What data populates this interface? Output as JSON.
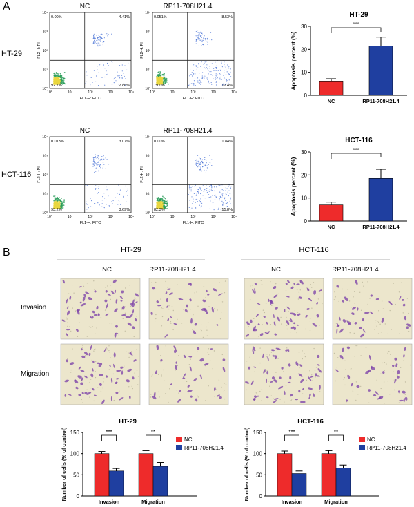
{
  "panel_a": {
    "label": "A",
    "col_nc": "NC",
    "col_rp": "RP11-708H21.4",
    "rows": [
      "HT-29",
      "HCT-116"
    ],
    "flow": {
      "xlabel": "FL1-H: FITC",
      "ylabel": "FL2-H: PI",
      "x_ticks": [
        "10⁰",
        "10¹",
        "10²",
        "10³",
        "10⁴"
      ],
      "y_ticks": [
        "10⁰",
        "10¹",
        "10²",
        "10³",
        "10⁴"
      ],
      "plots": [
        {
          "row": "HT-29",
          "group": "NC",
          "ul": "0.00%",
          "ur": "4.41%",
          "ll": "92.7%",
          "lr": "2.86%"
        },
        {
          "row": "HT-29",
          "group": "RP11-708H21.4",
          "ul": "0.051%",
          "ur": "8.53%",
          "ll": "79.0%",
          "lr": "12.4%"
        },
        {
          "row": "HCT-116",
          "group": "NC",
          "ul": "0.013%",
          "ur": "3.07%",
          "ll": "93.2%",
          "lr": "3.69%"
        },
        {
          "row": "HCT-116",
          "group": "RP11-708H21.4",
          "ul": "0.00%",
          "ur": "1.84%",
          "ll": "82.3%",
          "lr": "15.8%"
        }
      ]
    }
  },
  "panel_b": {
    "label": "B",
    "cell_lines": [
      "HT-29",
      "HCT-116"
    ],
    "groups": [
      "NC",
      "RP11-708H21.4",
      "NC",
      "RP11-708H21.4"
    ],
    "row_labels": [
      "Invasion",
      "Migration"
    ]
  },
  "colors": {
    "nc": "#ee2b2b",
    "rp": "#1f3fa0",
    "stain": "#7a3ea8",
    "bg_field": "#ece6cc",
    "flow_dense": "#2a9d5a"
  },
  "chart_data": [
    {
      "type": "bar",
      "title": "HT-29",
      "categories": [
        "NC",
        "RP11-708H21.4"
      ],
      "values": [
        6.2,
        21.5
      ],
      "errors": [
        1.0,
        3.8
      ],
      "ylabel": "Apoptosis percent (%)",
      "ylim": [
        0,
        30
      ],
      "y_ticks": [
        0,
        10,
        20,
        30
      ],
      "significance": "***"
    },
    {
      "type": "bar",
      "title": "HCT-116",
      "categories": [
        "NC",
        "RP11-708H21.4"
      ],
      "values": [
        7.0,
        18.5
      ],
      "errors": [
        1.2,
        4.0
      ],
      "ylabel": "Apoptosis percent (%)",
      "ylim": [
        0,
        30
      ],
      "y_ticks": [
        0,
        10,
        20,
        30
      ],
      "significance": "***"
    },
    {
      "type": "bar",
      "title": "HT-29",
      "categories": [
        "Invasion",
        "Migration"
      ],
      "series": [
        {
          "name": "NC",
          "values": [
            100,
            100
          ],
          "errors": [
            5,
            7
          ]
        },
        {
          "name": "RP11-708H21.4",
          "values": [
            59,
            70
          ],
          "errors": [
            6,
            9
          ]
        }
      ],
      "ylabel": "Number of cells (% of control)",
      "ylim": [
        0,
        150
      ],
      "y_ticks": [
        0,
        50,
        100,
        150
      ],
      "significance": [
        "***",
        "**"
      ],
      "legend": "top-right"
    },
    {
      "type": "bar",
      "title": "HCT-116",
      "categories": [
        "Invasion",
        "Migration"
      ],
      "series": [
        {
          "name": "NC",
          "values": [
            100,
            100
          ],
          "errors": [
            6,
            7
          ]
        },
        {
          "name": "RP11-708H21.4",
          "values": [
            53,
            66
          ],
          "errors": [
            6,
            7
          ]
        }
      ],
      "ylabel": "Number of cells (% of control)",
      "ylim": [
        0,
        150
      ],
      "y_ticks": [
        0,
        50,
        100,
        150
      ],
      "significance": [
        "***",
        "**"
      ],
      "legend": "top-right"
    }
  ]
}
